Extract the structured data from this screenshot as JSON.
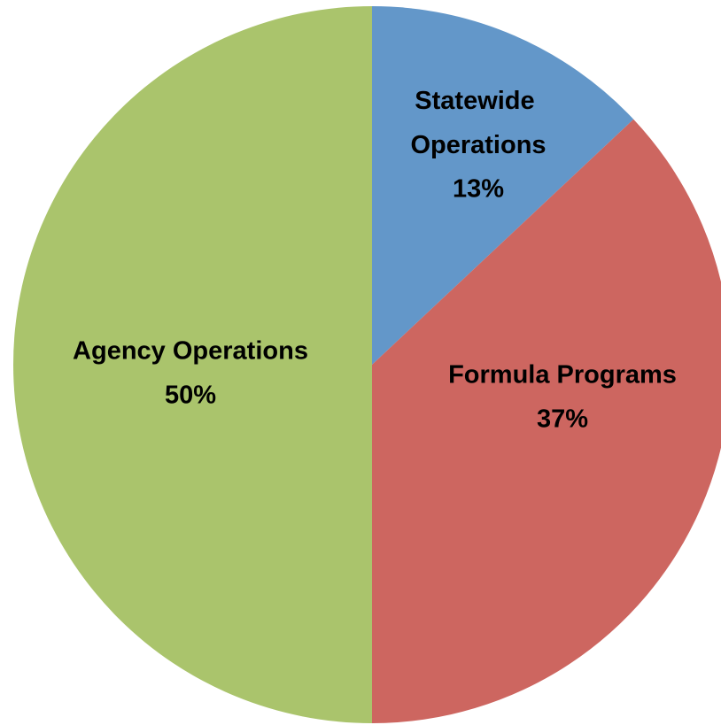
{
  "chart_data": {
    "type": "pie",
    "categories": [
      "Statewide Operations",
      "Formula Programs",
      "Agency Operations"
    ],
    "values": [
      13,
      37,
      50
    ],
    "value_labels": [
      "13%",
      "37%",
      "50%"
    ],
    "colors": [
      "#6397c9",
      "#cd6660",
      "#aac46c"
    ]
  }
}
